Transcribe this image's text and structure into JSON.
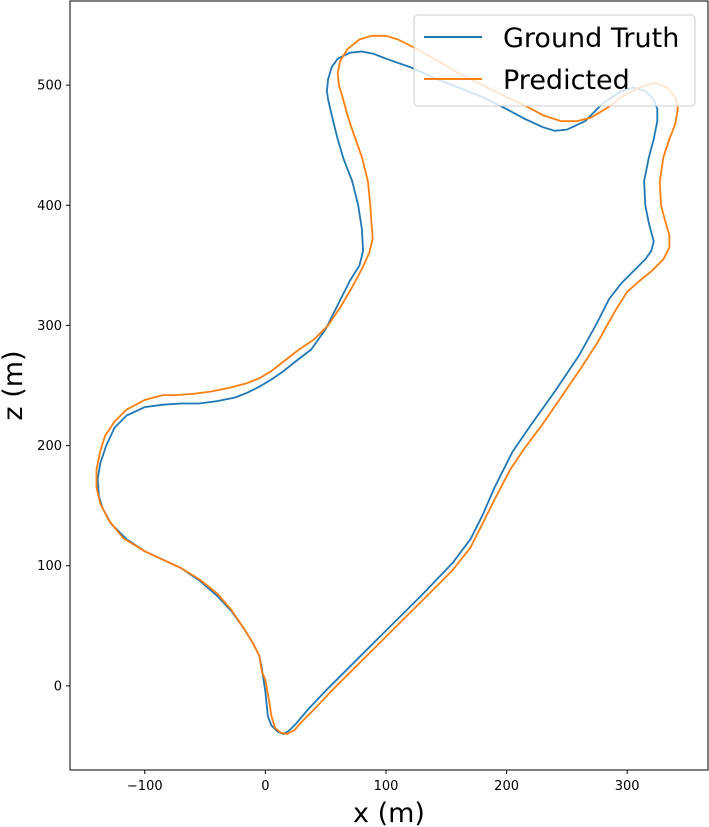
{
  "chart_data": {
    "type": "line",
    "xlabel": "x (m)",
    "ylabel": "z (m)",
    "xlim": [
      -162,
      367
    ],
    "ylim": [
      -70,
      570
    ],
    "xticks": [
      -100,
      0,
      100,
      200,
      300
    ],
    "yticks": [
      0,
      100,
      200,
      300,
      400,
      500
    ],
    "xtick_labels": [
      "−100",
      "0",
      "100",
      "200",
      "300"
    ],
    "ytick_labels": [
      "0",
      "100",
      "200",
      "300",
      "400",
      "500"
    ],
    "grid": false,
    "legend_position": "top-right",
    "series": [
      {
        "name": "Ground Truth",
        "color": "#1f77b4",
        "points": [
          [
            -2,
            8
          ],
          [
            0,
            -5
          ],
          [
            2,
            -25
          ],
          [
            5,
            -33
          ],
          [
            10,
            -38
          ],
          [
            15,
            -40
          ],
          [
            20,
            -37
          ],
          [
            25,
            -32
          ],
          [
            35,
            -20
          ],
          [
            50,
            -4
          ],
          [
            70,
            16
          ],
          [
            100,
            46
          ],
          [
            130,
            76
          ],
          [
            155,
            102
          ],
          [
            170,
            122
          ],
          [
            180,
            142
          ],
          [
            190,
            165
          ],
          [
            205,
            195
          ],
          [
            220,
            217
          ],
          [
            240,
            245
          ],
          [
            260,
            275
          ],
          [
            275,
            302
          ],
          [
            285,
            322
          ],
          [
            295,
            335
          ],
          [
            305,
            345
          ],
          [
            315,
            355
          ],
          [
            320,
            362
          ],
          [
            322,
            370
          ],
          [
            318,
            385
          ],
          [
            315,
            400
          ],
          [
            314,
            420
          ],
          [
            318,
            440
          ],
          [
            322,
            455
          ],
          [
            325,
            470
          ],
          [
            325,
            480
          ],
          [
            322,
            488
          ],
          [
            315,
            495
          ],
          [
            305,
            498
          ],
          [
            295,
            495
          ],
          [
            280,
            485
          ],
          [
            265,
            470
          ],
          [
            250,
            463
          ],
          [
            240,
            462
          ],
          [
            230,
            465
          ],
          [
            215,
            472
          ],
          [
            200,
            480
          ],
          [
            180,
            490
          ],
          [
            160,
            498
          ],
          [
            140,
            506
          ],
          [
            120,
            515
          ],
          [
            100,
            522
          ],
          [
            90,
            526
          ],
          [
            80,
            528
          ],
          [
            70,
            527
          ],
          [
            60,
            522
          ],
          [
            55,
            515
          ],
          [
            52,
            505
          ],
          [
            51,
            495
          ],
          [
            52,
            488
          ],
          [
            55,
            475
          ],
          [
            60,
            455
          ],
          [
            65,
            438
          ],
          [
            72,
            420
          ],
          [
            77,
            400
          ],
          [
            80,
            380
          ],
          [
            81,
            362
          ],
          [
            78,
            350
          ],
          [
            70,
            337
          ],
          [
            60,
            317
          ],
          [
            50,
            297
          ],
          [
            38,
            280
          ],
          [
            25,
            270
          ],
          [
            15,
            262
          ],
          [
            5,
            255
          ],
          [
            -5,
            249
          ],
          [
            -15,
            244
          ],
          [
            -25,
            240
          ],
          [
            -40,
            237
          ],
          [
            -55,
            235
          ],
          [
            -70,
            235
          ],
          [
            -85,
            234
          ],
          [
            -100,
            232
          ],
          [
            -115,
            225
          ],
          [
            -125,
            215
          ],
          [
            -132,
            200
          ],
          [
            -137,
            185
          ],
          [
            -139,
            172
          ],
          [
            -138,
            158
          ],
          [
            -135,
            148
          ],
          [
            -128,
            135
          ],
          [
            -115,
            122
          ],
          [
            -100,
            112
          ],
          [
            -85,
            105
          ],
          [
            -70,
            98
          ],
          [
            -55,
            88
          ],
          [
            -40,
            75
          ],
          [
            -28,
            62
          ],
          [
            -18,
            48
          ],
          [
            -10,
            35
          ],
          [
            -5,
            25
          ],
          [
            -3,
            15
          ],
          [
            -2,
            8
          ]
        ]
      },
      {
        "name": "Predicted",
        "color": "#ff7f0e",
        "points": [
          [
            -3,
            12
          ],
          [
            0,
            5
          ],
          [
            3,
            -12
          ],
          [
            5,
            -25
          ],
          [
            8,
            -35
          ],
          [
            13,
            -39
          ],
          [
            18,
            -40
          ],
          [
            24,
            -37
          ],
          [
            30,
            -30
          ],
          [
            40,
            -20
          ],
          [
            55,
            -4
          ],
          [
            75,
            16
          ],
          [
            100,
            41
          ],
          [
            130,
            71
          ],
          [
            155,
            96
          ],
          [
            170,
            115
          ],
          [
            180,
            135
          ],
          [
            190,
            155
          ],
          [
            203,
            180
          ],
          [
            215,
            198
          ],
          [
            230,
            218
          ],
          [
            245,
            240
          ],
          [
            262,
            265
          ],
          [
            275,
            285
          ],
          [
            290,
            312
          ],
          [
            300,
            328
          ],
          [
            310,
            337
          ],
          [
            320,
            345
          ],
          [
            330,
            355
          ],
          [
            335,
            365
          ],
          [
            335,
            375
          ],
          [
            332,
            385
          ],
          [
            328,
            400
          ],
          [
            327,
            420
          ],
          [
            330,
            440
          ],
          [
            335,
            455
          ],
          [
            340,
            468
          ],
          [
            342,
            480
          ],
          [
            340,
            490
          ],
          [
            333,
            498
          ],
          [
            323,
            502
          ],
          [
            310,
            498
          ],
          [
            295,
            490
          ],
          [
            285,
            482
          ],
          [
            270,
            473
          ],
          [
            258,
            470
          ],
          [
            245,
            470
          ],
          [
            230,
            475
          ],
          [
            215,
            483
          ],
          [
            200,
            490
          ],
          [
            180,
            500
          ],
          [
            160,
            510
          ],
          [
            140,
            522
          ],
          [
            120,
            533
          ],
          [
            110,
            538
          ],
          [
            100,
            541
          ],
          [
            88,
            541
          ],
          [
            78,
            538
          ],
          [
            68,
            530
          ],
          [
            62,
            520
          ],
          [
            60,
            510
          ],
          [
            61,
            500
          ],
          [
            64,
            490
          ],
          [
            68,
            475
          ],
          [
            73,
            460
          ],
          [
            80,
            440
          ],
          [
            85,
            420
          ],
          [
            87,
            400
          ],
          [
            88,
            385
          ],
          [
            89,
            372
          ],
          [
            86,
            360
          ],
          [
            80,
            347
          ],
          [
            72,
            332
          ],
          [
            62,
            315
          ],
          [
            52,
            300
          ],
          [
            40,
            288
          ],
          [
            28,
            280
          ],
          [
            15,
            270
          ],
          [
            5,
            262
          ],
          [
            -5,
            256
          ],
          [
            -15,
            252
          ],
          [
            -30,
            248
          ],
          [
            -45,
            245
          ],
          [
            -60,
            243
          ],
          [
            -75,
            242
          ],
          [
            -85,
            242
          ],
          [
            -100,
            238
          ],
          [
            -115,
            230
          ],
          [
            -125,
            220
          ],
          [
            -133,
            208
          ],
          [
            -137,
            195
          ],
          [
            -140,
            180
          ],
          [
            -140,
            165
          ],
          [
            -137,
            152
          ],
          [
            -130,
            138
          ],
          [
            -118,
            123
          ],
          [
            -100,
            112
          ],
          [
            -85,
            105
          ],
          [
            -70,
            98
          ],
          [
            -55,
            89
          ],
          [
            -40,
            77
          ],
          [
            -28,
            63
          ],
          [
            -18,
            48
          ],
          [
            -10,
            35
          ],
          [
            -5,
            25
          ],
          [
            -3,
            12
          ]
        ]
      }
    ]
  }
}
